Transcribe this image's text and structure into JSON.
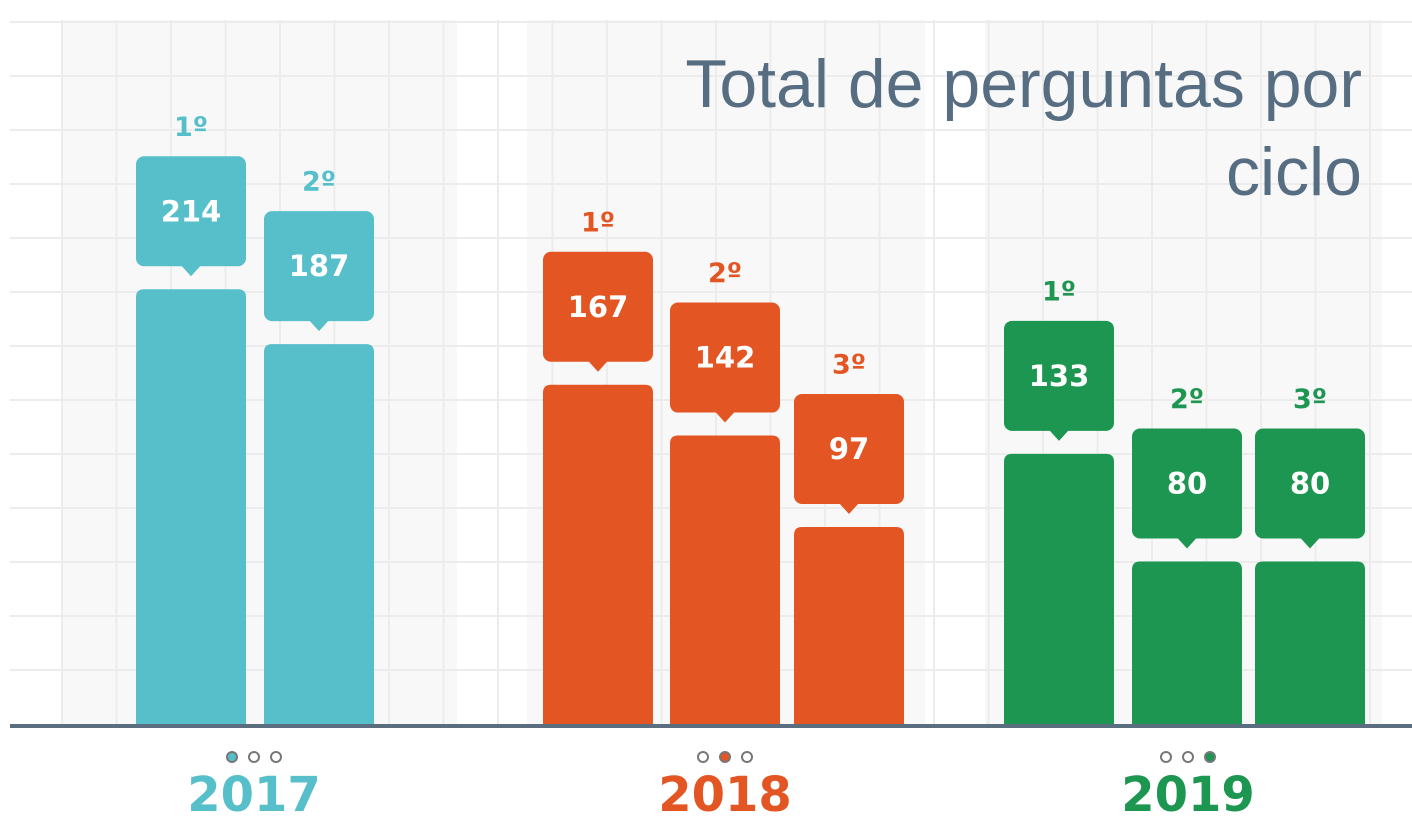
{
  "chart_data": {
    "type": "bar",
    "title": "Total de perguntas por ciclo",
    "ylim": [
      0,
      350
    ],
    "series": [
      {
        "name": "2017",
        "color": "#56bfc9",
        "categories": [
          "1º",
          "2º"
        ],
        "values": [
          214,
          187
        ]
      },
      {
        "name": "2018",
        "color": "#e35624",
        "categories": [
          "1º",
          "2º",
          "3º"
        ],
        "values": [
          167,
          142,
          97
        ]
      },
      {
        "name": "2019",
        "color": "#1c9650",
        "categories": [
          "1º",
          "2º",
          "3º"
        ],
        "values": [
          133,
          80,
          80
        ]
      }
    ]
  }
}
